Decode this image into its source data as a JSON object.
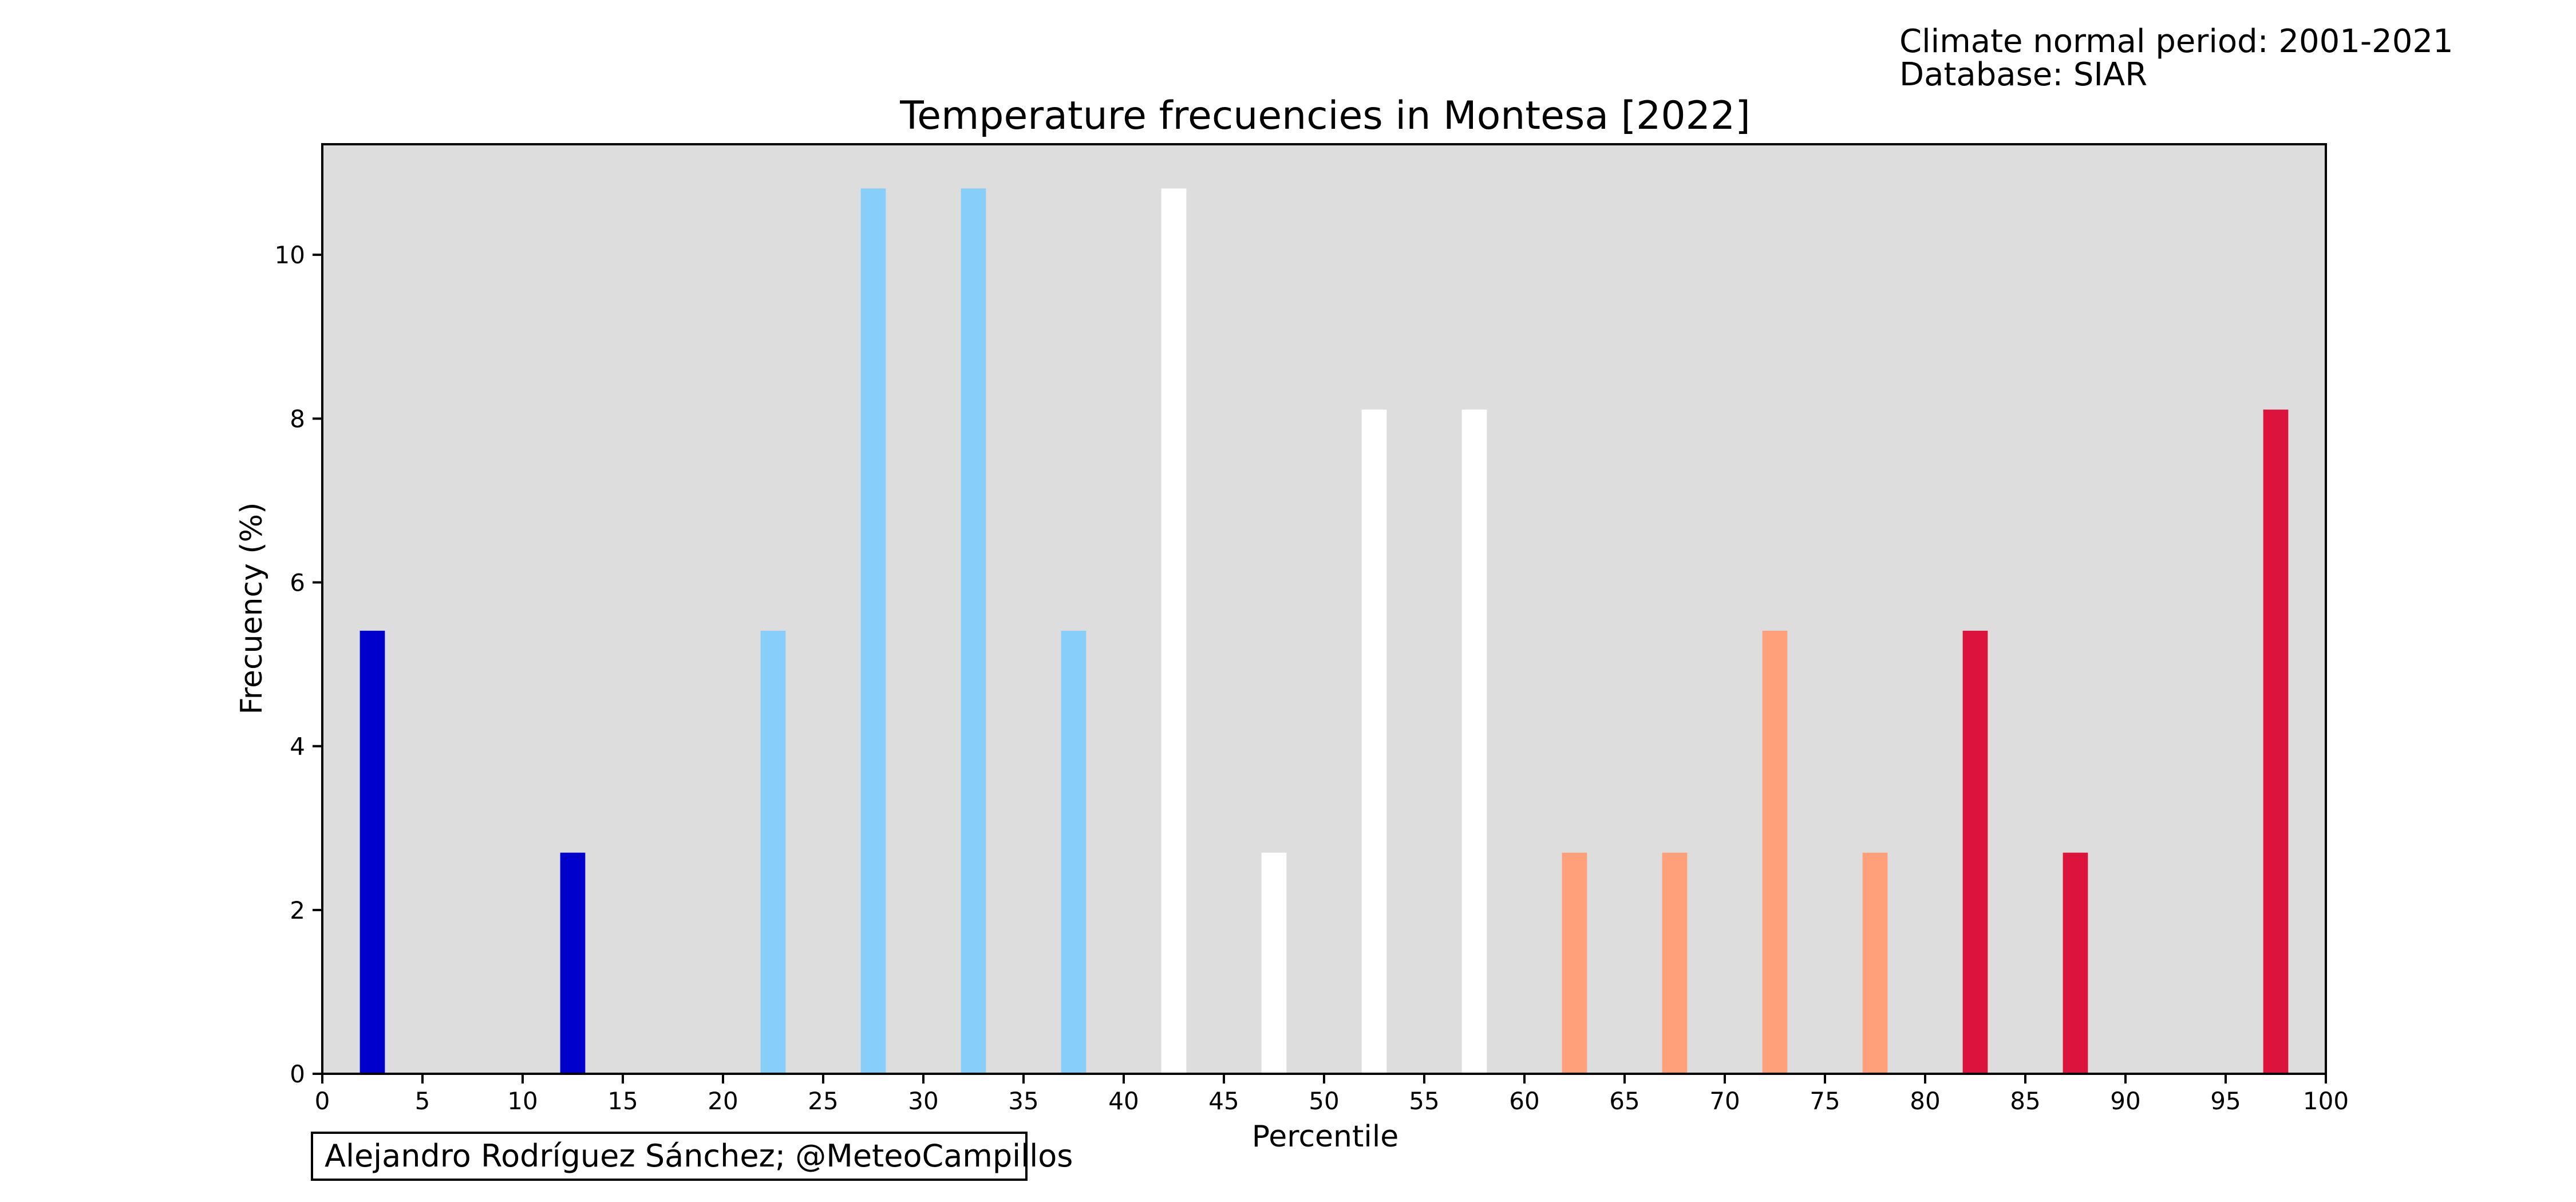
{
  "meta": {
    "normal_period": "Climate normal period: 2001-2021",
    "database": "Database: SIAR"
  },
  "credit": "Alejandro Rodríguez Sánchez; @MeteoCampillos",
  "chart_data": {
    "type": "bar",
    "title": "Temperature frecuencies in Montesa [2022]",
    "xlabel": "Percentile",
    "ylabel": "Frecuency (%)",
    "xlim": [
      0,
      100
    ],
    "ylim": [
      0,
      11.35
    ],
    "xticks": [
      0,
      5,
      10,
      15,
      20,
      25,
      30,
      35,
      40,
      45,
      50,
      55,
      60,
      65,
      70,
      75,
      80,
      85,
      90,
      95,
      100
    ],
    "yticks": [
      0,
      2,
      4,
      6,
      8,
      10
    ],
    "grid": false,
    "plot_background": "#dddddd",
    "x": [
      2.5,
      7.5,
      12.5,
      17.5,
      22.5,
      27.5,
      32.5,
      37.5,
      42.5,
      47.5,
      52.5,
      57.5,
      62.5,
      67.5,
      72.5,
      77.5,
      82.5,
      87.5,
      92.5,
      97.5
    ],
    "values": [
      5.41,
      0,
      2.7,
      0,
      5.41,
      10.81,
      10.81,
      5.41,
      10.81,
      2.7,
      8.11,
      8.11,
      2.7,
      2.7,
      5.41,
      2.7,
      5.41,
      2.7,
      0,
      8.11
    ],
    "colors": [
      "#0000cd",
      "#0000cd",
      "#0000cd",
      "#0000cd",
      "#87cefa",
      "#87cefa",
      "#87cefa",
      "#87cefa",
      "#ffffff",
      "#ffffff",
      "#ffffff",
      "#ffffff",
      "#ffa07a",
      "#ffa07a",
      "#ffa07a",
      "#ffa07a",
      "#dc143c",
      "#dc143c",
      "#dc143c",
      "#dc143c"
    ],
    "bar_width": 1.25
  }
}
